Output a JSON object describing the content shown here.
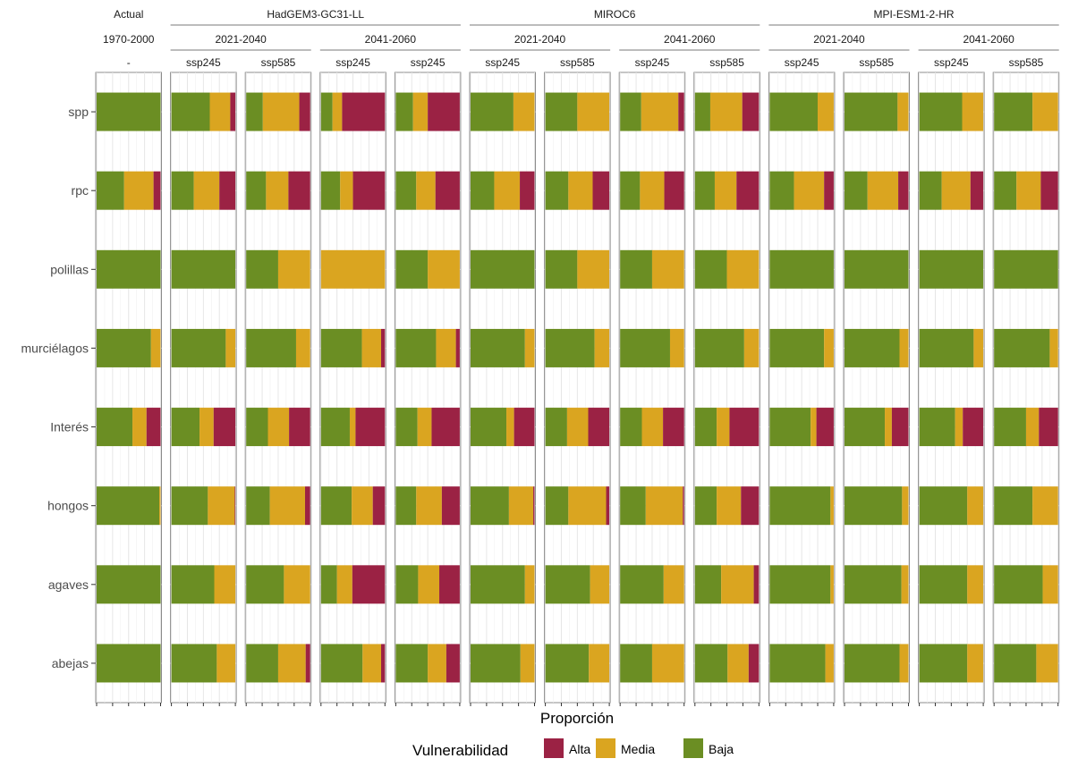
{
  "chart_data": {
    "type": "bar",
    "orientation": "horizontal",
    "stacked": true,
    "xlabel": "Proporción",
    "ylabel": "",
    "xlim": [
      0,
      1
    ],
    "grid": true,
    "legend": {
      "title": "Vulnerabilidad",
      "position": "bottom",
      "items": [
        {
          "name": "Alta",
          "color": "#9b2244"
        },
        {
          "name": "Media",
          "color": "#daa520"
        },
        {
          "name": "Baja",
          "color": "#6b8e23"
        }
      ]
    },
    "colors": {
      "Alta": "#9b2244",
      "Media": "#daa520",
      "Baja": "#6b8e23"
    },
    "categories": [
      "spp",
      "rpc",
      "polillas",
      "murciélagos",
      "Interés",
      "hongos",
      "agaves",
      "abejas"
    ],
    "stack_order": [
      "Baja",
      "Media",
      "Alta"
    ],
    "header_levels": {
      "models": [
        {
          "label": "Actual",
          "span": 1
        },
        {
          "label": "HadGEM3-GC31-LL",
          "span": 4
        },
        {
          "label": "MIROC6",
          "span": 4
        },
        {
          "label": "MPI-ESM1-2-HR",
          "span": 4
        }
      ],
      "periods": [
        {
          "label": "1970-2000",
          "span": 1
        },
        {
          "label": "2021-2040",
          "span": 2
        },
        {
          "label": "2041-2060",
          "span": 2
        },
        {
          "label": "2021-2040",
          "span": 2
        },
        {
          "label": "2041-2060",
          "span": 2
        },
        {
          "label": "2021-2040",
          "span": 2
        },
        {
          "label": "2041-2060",
          "span": 2
        }
      ]
    },
    "panels": [
      {
        "scenario": "-",
        "values": [
          [
            1.0,
            0.0,
            0.0
          ],
          [
            0.43,
            0.46,
            0.11
          ],
          [
            1.0,
            0.0,
            0.0
          ],
          [
            0.85,
            0.15,
            0.0
          ],
          [
            0.56,
            0.22,
            0.22
          ],
          [
            0.98,
            0.02,
            0.0
          ],
          [
            1.0,
            0.0,
            0.0
          ],
          [
            1.0,
            0.0,
            0.0
          ]
        ]
      },
      {
        "scenario": "ssp245",
        "values": [
          [
            0.6,
            0.32,
            0.08
          ],
          [
            0.35,
            0.4,
            0.25
          ],
          [
            1.0,
            0.0,
            0.0
          ],
          [
            0.85,
            0.15,
            0.0
          ],
          [
            0.44,
            0.22,
            0.34
          ],
          [
            0.57,
            0.42,
            0.01
          ],
          [
            0.67,
            0.33,
            0.0
          ],
          [
            0.71,
            0.29,
            0.0
          ]
        ]
      },
      {
        "scenario": "ssp585",
        "values": [
          [
            0.26,
            0.57,
            0.17
          ],
          [
            0.31,
            0.35,
            0.34
          ],
          [
            0.5,
            0.5,
            0.0
          ],
          [
            0.78,
            0.22,
            0.0
          ],
          [
            0.34,
            0.33,
            0.33
          ],
          [
            0.37,
            0.55,
            0.08
          ],
          [
            0.59,
            0.41,
            0.0
          ],
          [
            0.5,
            0.43,
            0.07
          ]
        ]
      },
      {
        "scenario": "ssp245",
        "values": [
          [
            0.18,
            0.15,
            0.67
          ],
          [
            0.3,
            0.2,
            0.5
          ],
          [
            0.0,
            1.0,
            0.0
          ],
          [
            0.64,
            0.3,
            0.06
          ],
          [
            0.45,
            0.09,
            0.46
          ],
          [
            0.48,
            0.33,
            0.19
          ],
          [
            0.25,
            0.24,
            0.51
          ],
          [
            0.65,
            0.29,
            0.06
          ]
        ]
      },
      {
        "scenario": "ssp245",
        "values": [
          [
            0.27,
            0.23,
            0.5
          ],
          [
            0.32,
            0.3,
            0.38
          ],
          [
            0.5,
            0.5,
            0.0
          ],
          [
            0.63,
            0.31,
            0.06
          ],
          [
            0.34,
            0.22,
            0.44
          ],
          [
            0.32,
            0.4,
            0.28
          ],
          [
            0.35,
            0.33,
            0.32
          ],
          [
            0.5,
            0.29,
            0.21
          ]
        ]
      },
      {
        "scenario": "ssp245",
        "values": [
          [
            0.67,
            0.33,
            0.0
          ],
          [
            0.37,
            0.4,
            0.23
          ],
          [
            1.0,
            0.0,
            0.0
          ],
          [
            0.85,
            0.15,
            0.0
          ],
          [
            0.56,
            0.12,
            0.32
          ],
          [
            0.6,
            0.38,
            0.02
          ],
          [
            0.85,
            0.15,
            0.0
          ],
          [
            0.78,
            0.22,
            0.0
          ]
        ]
      },
      {
        "scenario": "ssp585",
        "values": [
          [
            0.5,
            0.5,
            0.0
          ],
          [
            0.36,
            0.38,
            0.26
          ],
          [
            0.5,
            0.5,
            0.0
          ],
          [
            0.77,
            0.23,
            0.0
          ],
          [
            0.34,
            0.33,
            0.33
          ],
          [
            0.36,
            0.59,
            0.05
          ],
          [
            0.7,
            0.3,
            0.0
          ],
          [
            0.68,
            0.32,
            0.0
          ]
        ]
      },
      {
        "scenario": "ssp245",
        "values": [
          [
            0.33,
            0.58,
            0.09
          ],
          [
            0.31,
            0.38,
            0.31
          ],
          [
            0.5,
            0.5,
            0.0
          ],
          [
            0.78,
            0.22,
            0.0
          ],
          [
            0.34,
            0.33,
            0.33
          ],
          [
            0.4,
            0.58,
            0.02
          ],
          [
            0.68,
            0.32,
            0.0
          ],
          [
            0.5,
            0.5,
            0.0
          ]
        ]
      },
      {
        "scenario": "ssp585",
        "values": [
          [
            0.24,
            0.5,
            0.26
          ],
          [
            0.31,
            0.34,
            0.35
          ],
          [
            0.5,
            0.5,
            0.0
          ],
          [
            0.77,
            0.23,
            0.0
          ],
          [
            0.34,
            0.2,
            0.46
          ],
          [
            0.34,
            0.38,
            0.28
          ],
          [
            0.41,
            0.51,
            0.08
          ],
          [
            0.51,
            0.33,
            0.16
          ]
        ]
      },
      {
        "scenario": "ssp245",
        "values": [
          [
            0.75,
            0.25,
            0.0
          ],
          [
            0.38,
            0.47,
            0.15
          ],
          [
            1.0,
            0.0,
            0.0
          ],
          [
            0.85,
            0.15,
            0.0
          ],
          [
            0.64,
            0.09,
            0.27
          ],
          [
            0.95,
            0.05,
            0.0
          ],
          [
            0.95,
            0.05,
            0.0
          ],
          [
            0.87,
            0.13,
            0.0
          ]
        ]
      },
      {
        "scenario": "ssp585",
        "values": [
          [
            0.83,
            0.17,
            0.0
          ],
          [
            0.36,
            0.48,
            0.16
          ],
          [
            1.0,
            0.0,
            0.0
          ],
          [
            0.86,
            0.14,
            0.0
          ],
          [
            0.63,
            0.11,
            0.26
          ],
          [
            0.9,
            0.1,
            0.0
          ],
          [
            0.89,
            0.11,
            0.0
          ],
          [
            0.86,
            0.14,
            0.0
          ]
        ]
      },
      {
        "scenario": "ssp245",
        "values": [
          [
            0.67,
            0.33,
            0.0
          ],
          [
            0.35,
            0.45,
            0.2
          ],
          [
            1.0,
            0.0,
            0.0
          ],
          [
            0.85,
            0.15,
            0.0
          ],
          [
            0.56,
            0.12,
            0.32
          ],
          [
            0.75,
            0.25,
            0.0
          ],
          [
            0.75,
            0.25,
            0.0
          ],
          [
            0.75,
            0.25,
            0.0
          ]
        ]
      },
      {
        "scenario": "ssp585",
        "values": [
          [
            0.6,
            0.4,
            0.0
          ],
          [
            0.35,
            0.38,
            0.27
          ],
          [
            1.0,
            0.0,
            0.0
          ],
          [
            0.87,
            0.13,
            0.0
          ],
          [
            0.5,
            0.2,
            0.3
          ],
          [
            0.6,
            0.4,
            0.0
          ],
          [
            0.76,
            0.24,
            0.0
          ],
          [
            0.66,
            0.34,
            0.0
          ]
        ]
      }
    ]
  }
}
